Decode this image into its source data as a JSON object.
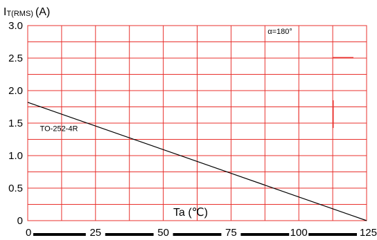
{
  "chart_data": {
    "type": "line",
    "ylabel": {
      "main": "I",
      "sub": "T(RMS)",
      "unit": "(A)"
    },
    "xlabel": "Ta (℃)",
    "ylim": [
      0,
      3.0
    ],
    "xlim": [
      0,
      125
    ],
    "y_ticks": [
      "0",
      "0.5",
      "1.0",
      "1.5",
      "2.0",
      "2.5",
      "3.0"
    ],
    "y_tick_values": [
      0,
      0.5,
      1.0,
      1.5,
      2.0,
      2.5,
      3.0
    ],
    "x_ticks": [
      "0",
      "25",
      "50",
      "75",
      "100",
      "125"
    ],
    "x_tick_values": [
      0,
      25,
      50,
      75,
      100,
      125
    ],
    "grid": true,
    "grid_color": "#e8302c",
    "axis_color": "#e8302c",
    "line_color": "#000000",
    "series": [
      {
        "x": [
          0,
          125
        ],
        "y": [
          1.82,
          0
        ]
      }
    ],
    "annotations": [
      {
        "text": "α=180°",
        "x": 88.5,
        "y": 2.87
      },
      {
        "text": "TO-252-4R",
        "x": 4.5,
        "y": 1.38
      }
    ]
  }
}
